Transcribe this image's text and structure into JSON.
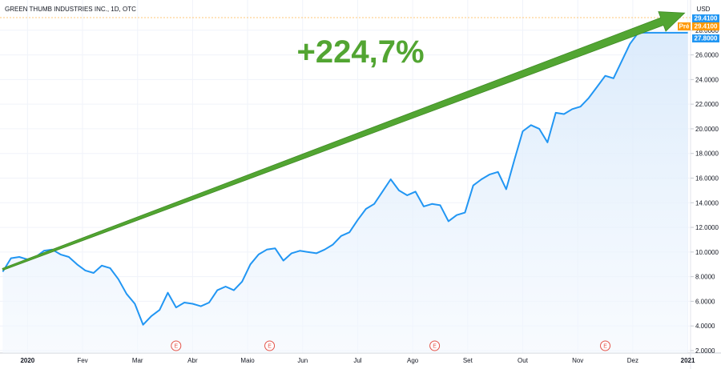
{
  "chart_title": "GREEN THUMB INDUSTRIES INC., 1D, OTC",
  "currency": "USD",
  "overlay_label": "+224,7%",
  "price_badges": [
    {
      "label": "",
      "value": "29.4100",
      "color": "#2196f3"
    },
    {
      "label": "Pré",
      "value": "29.4100",
      "color": "#ff9800"
    },
    {
      "label": "",
      "value": "27.8000",
      "color": "#2196f3"
    }
  ],
  "earnings_marker": "E",
  "colors": {
    "line": "#2196f3",
    "area": "#eaf3fd",
    "arrow": "#52a532",
    "badge_blue": "#2196f3",
    "badge_orange": "#ff9800",
    "earnings": "#e4544a"
  },
  "chart_data": {
    "type": "area",
    "title": "GREEN THUMB INDUSTRIES INC., 1D, OTC",
    "xlabel": "",
    "ylabel": "USD",
    "ylim": [
      2,
      30
    ],
    "y_ticks": [
      "2.0000",
      "4.0000",
      "6.0000",
      "8.0000",
      "10.0000",
      "12.0000",
      "14.0000",
      "16.0000",
      "18.0000",
      "20.0000",
      "22.0000",
      "24.0000",
      "26.0000",
      "28.0000"
    ],
    "x_month_labels": [
      "2020",
      "Fev",
      "Mar",
      "Abr",
      "Maio",
      "Jun",
      "Jul",
      "Ago",
      "Set",
      "Out",
      "Nov",
      "Dez",
      "2021"
    ],
    "x_month_positions": [
      0.5,
      1.5,
      2.5,
      3.5,
      4.5,
      5.5,
      6.5,
      7.5,
      8.5,
      9.5,
      10.5,
      11.5,
      12.5
    ],
    "earnings_x": [
      3.2,
      4.9,
      7.9,
      11.0
    ],
    "trend_arrow": {
      "x": [
        0.05,
        12.5
      ],
      "y": [
        8.6,
        29.4
      ],
      "label": "+224,7%"
    },
    "series": [
      {
        "x": [
          0.05,
          0.2,
          0.35,
          0.5,
          0.65,
          0.8,
          0.95,
          1.1,
          1.25,
          1.4,
          1.55,
          1.7,
          1.85,
          2.0,
          2.15,
          2.3,
          2.45,
          2.6,
          2.75,
          2.9,
          3.05,
          3.2,
          3.35,
          3.5,
          3.65,
          3.8,
          3.95,
          4.1,
          4.25,
          4.4,
          4.55,
          4.7,
          4.85,
          5.0,
          5.15,
          5.3,
          5.45,
          5.6,
          5.75,
          5.9,
          6.05,
          6.2,
          6.35,
          6.5,
          6.65,
          6.8,
          6.95,
          7.1,
          7.25,
          7.4,
          7.55,
          7.7,
          7.85,
          8.0,
          8.15,
          8.3,
          8.45,
          8.6,
          8.75,
          8.9,
          9.05,
          9.2,
          9.35,
          9.5,
          9.65,
          9.8,
          9.95,
          10.1,
          10.25,
          10.4,
          10.55,
          10.7,
          10.85,
          11.0,
          11.15,
          11.3,
          11.45,
          11.6,
          11.75,
          11.9,
          12.05,
          12.2,
          12.35,
          12.5
        ],
        "y": [
          8.4,
          9.5,
          9.6,
          9.4,
          9.6,
          10.1,
          10.2,
          9.8,
          9.6,
          9.0,
          8.5,
          8.3,
          8.9,
          8.7,
          7.8,
          6.6,
          5.8,
          4.1,
          4.8,
          5.3,
          6.7,
          5.5,
          5.9,
          5.8,
          5.6,
          5.9,
          6.9,
          7.2,
          6.9,
          7.6,
          9.0,
          9.8,
          10.2,
          10.3,
          9.3,
          9.9,
          10.1,
          10.0,
          9.9,
          10.2,
          10.6,
          11.3,
          11.6,
          12.6,
          13.5,
          13.9,
          14.9,
          15.9,
          15.0,
          14.6,
          14.9,
          13.7,
          13.9,
          13.8,
          12.5,
          13.0,
          13.2,
          15.4,
          15.9,
          16.3,
          16.5,
          15.1,
          17.5,
          19.8,
          20.3,
          20.0,
          18.9,
          21.3,
          21.2,
          21.6,
          21.8,
          22.5,
          23.4,
          24.3,
          24.1,
          25.5,
          26.9,
          27.8,
          27.8,
          27.8,
          27.8,
          27.8,
          27.8,
          27.8
        ],
        "color": "#2196f3"
      }
    ]
  }
}
